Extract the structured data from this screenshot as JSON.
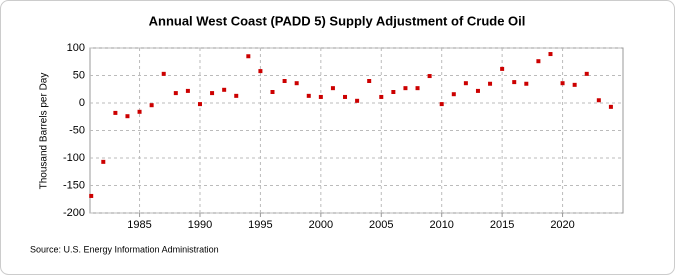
{
  "chart_data": {
    "type": "scatter",
    "title": "Annual West Coast (PADD 5) Supply Adjustment of Crude Oil",
    "y_label": "Thousand Barrels per Day",
    "source": "Source: U.S. Energy Information Administration",
    "x": [
      1981,
      1982,
      1983,
      1984,
      1985,
      1986,
      1987,
      1988,
      1989,
      1990,
      1991,
      1992,
      1993,
      1994,
      1995,
      1996,
      1997,
      1998,
      1999,
      2000,
      2001,
      2002,
      2003,
      2004,
      2005,
      2006,
      2007,
      2008,
      2009,
      2010,
      2011,
      2012,
      2013,
      2014,
      2015,
      2016,
      2017,
      2018,
      2019,
      2020,
      2021,
      2022,
      2023,
      2024
    ],
    "values": [
      -169,
      -107,
      -18,
      -24,
      -16,
      -4,
      53,
      18,
      22,
      -2,
      18,
      24,
      13,
      85,
      58,
      20,
      40,
      36,
      13,
      11,
      27,
      11,
      4,
      40,
      11,
      20,
      27,
      27,
      49,
      -2,
      16,
      36,
      22,
      35,
      62,
      38,
      35,
      76,
      89,
      36,
      33,
      53,
      5,
      -7
    ],
    "color": "#cc0000",
    "xlim": [
      1980.9,
      2025
    ],
    "xticks": [
      1985,
      1990,
      1995,
      2000,
      2005,
      2010,
      2015,
      2020
    ],
    "ylim": [
      -200,
      100
    ],
    "yticks": [
      -200,
      -150,
      -100,
      -50,
      0,
      50,
      100
    ],
    "grid": true
  }
}
